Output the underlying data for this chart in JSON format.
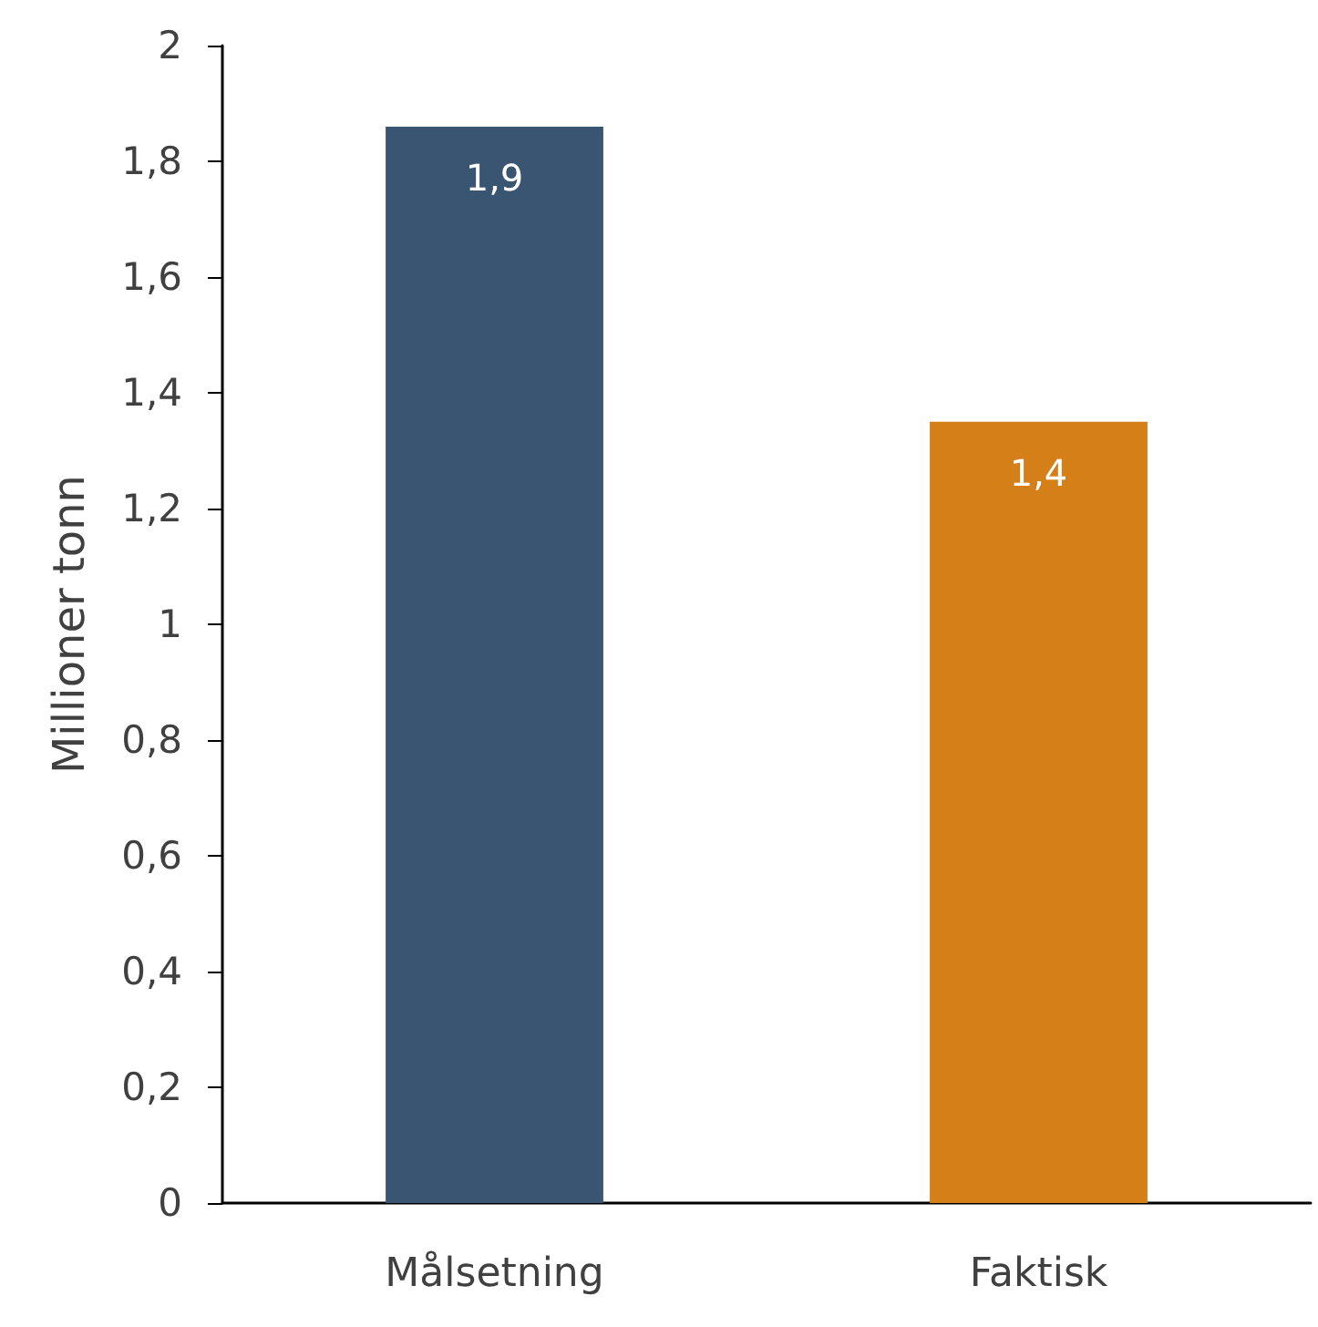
{
  "chart_data": {
    "type": "bar",
    "ylabel": "Millioner tonn",
    "categories": [
      "Målsetning",
      "Faktisk"
    ],
    "values": [
      1.86,
      1.35
    ],
    "colors": [
      "#3a5572",
      "#d47f17"
    ],
    "value_labels": [
      "1,9",
      "1,4"
    ],
    "ylim": [
      0,
      2
    ],
    "yticks": [
      0,
      {
        "value": 0.2,
        "label": "0,2"
      },
      {
        "value": 0.4,
        "label": "0,4"
      },
      {
        "value": 0.6,
        "label": "0,6"
      },
      {
        "value": 0.8,
        "label": "0,8"
      },
      1,
      {
        "value": 1.2,
        "label": "1,2"
      },
      {
        "value": 1.4,
        "label": "1,4"
      },
      {
        "value": 1.6,
        "label": "1,6"
      },
      {
        "value": 1.8,
        "label": "1,8"
      },
      2
    ],
    "grid": false
  }
}
